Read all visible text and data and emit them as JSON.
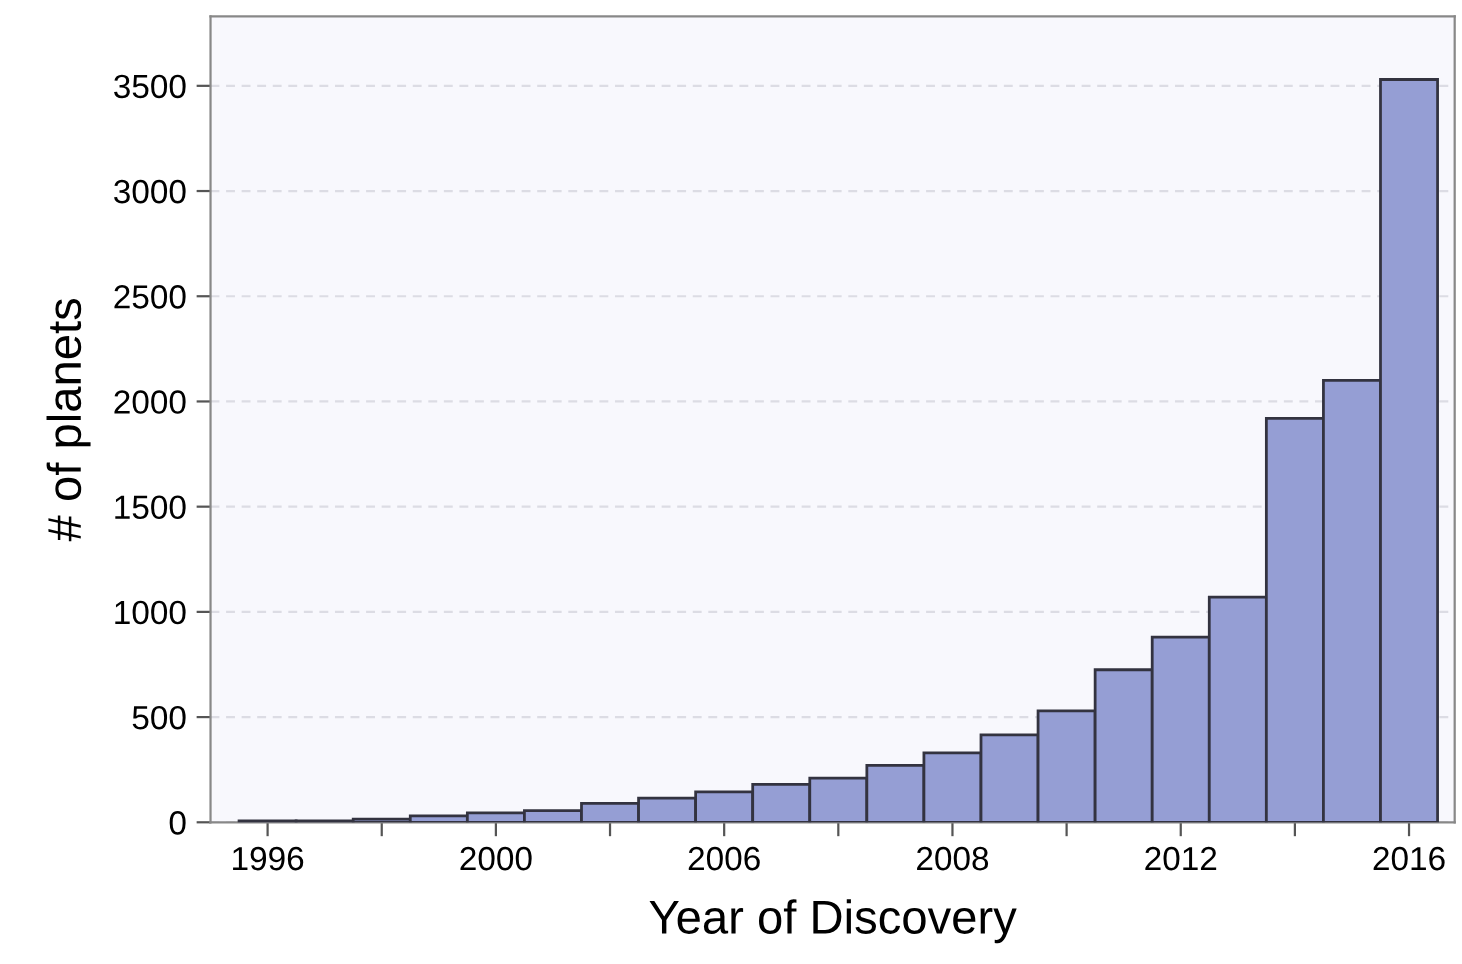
{
  "chart_data": {
    "type": "bar",
    "xlabel": "Year of Discovery",
    "ylabel": "# of planets",
    "categories": [
      "1996",
      null,
      null,
      null,
      "2000",
      null,
      null,
      null,
      "2006",
      null,
      null,
      null,
      "2008",
      null,
      null,
      null,
      "2012",
      null,
      null,
      null,
      "2016"
    ],
    "values": [
      7,
      7,
      15,
      30,
      45,
      55,
      90,
      115,
      145,
      180,
      210,
      270,
      330,
      415,
      530,
      725,
      880,
      1070,
      1920,
      2100,
      3530
    ],
    "color": "#959ed4",
    "ylim": [
      0,
      3830
    ],
    "yticks": [
      0,
      500,
      1000,
      1500,
      2000,
      2500,
      3000,
      3500
    ],
    "grid": "y"
  }
}
